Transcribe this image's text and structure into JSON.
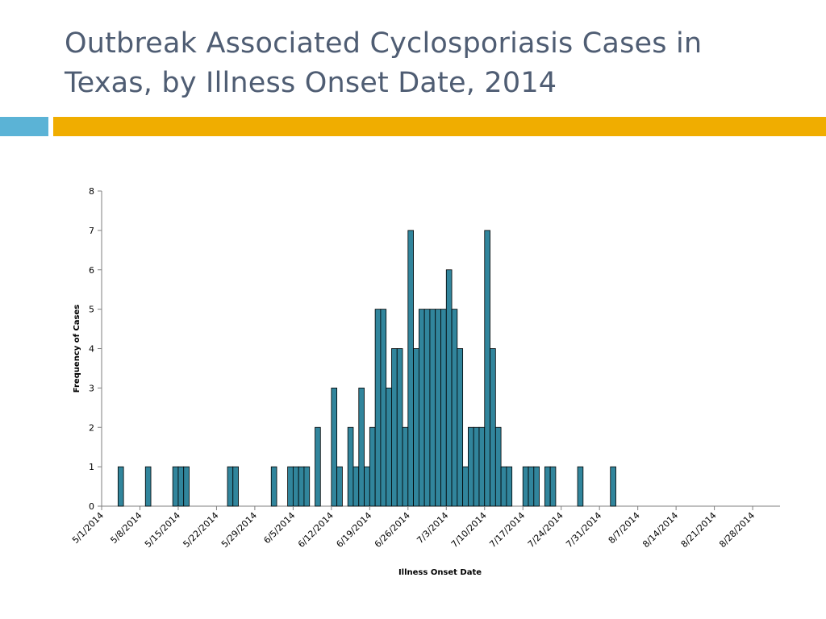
{
  "slide": {
    "title": "Outbreak Associated Cyclosporiasis Cases in Texas, by Illness Onset Date, 2014",
    "colors": {
      "title": "#4f5d73",
      "accent_blue": "#5bb3d6",
      "accent_gold": "#f0ad00"
    }
  },
  "chart_data": {
    "type": "bar",
    "title": "",
    "xlabel": "Illness Onset Date",
    "ylabel": "Frequency of Cases",
    "ylim": [
      0,
      8
    ],
    "yticks": [
      0,
      1,
      2,
      3,
      4,
      5,
      6,
      7,
      8
    ],
    "xtick_labels": [
      "5/1/2014",
      "5/8/2014",
      "5/15/2014",
      "5/22/2014",
      "5/29/2014",
      "6/5/2014",
      "6/12/2014",
      "6/19/2014",
      "6/26/2014",
      "7/3/2014",
      "7/10/2014",
      "7/17/2014",
      "7/24/2014",
      "7/31/2014",
      "8/7/2014",
      "8/14/2014",
      "8/21/2014",
      "8/28/2014"
    ],
    "start_date": "5/1/2014",
    "days_shown": 124,
    "bar_color": "#31859c",
    "series": [
      {
        "name": "Cases",
        "points": [
          {
            "date": "5/4/2014",
            "value": 1
          },
          {
            "date": "5/9/2014",
            "value": 1
          },
          {
            "date": "5/14/2014",
            "value": 1
          },
          {
            "date": "5/15/2014",
            "value": 1
          },
          {
            "date": "5/16/2014",
            "value": 1
          },
          {
            "date": "5/24/2014",
            "value": 1
          },
          {
            "date": "5/25/2014",
            "value": 1
          },
          {
            "date": "6/1/2014",
            "value": 1
          },
          {
            "date": "6/4/2014",
            "value": 1
          },
          {
            "date": "6/5/2014",
            "value": 1
          },
          {
            "date": "6/6/2014",
            "value": 1
          },
          {
            "date": "6/7/2014",
            "value": 1
          },
          {
            "date": "6/9/2014",
            "value": 2
          },
          {
            "date": "6/12/2014",
            "value": 3
          },
          {
            "date": "6/13/2014",
            "value": 1
          },
          {
            "date": "6/15/2014",
            "value": 2
          },
          {
            "date": "6/16/2014",
            "value": 1
          },
          {
            "date": "6/17/2014",
            "value": 3
          },
          {
            "date": "6/18/2014",
            "value": 1
          },
          {
            "date": "6/19/2014",
            "value": 2
          },
          {
            "date": "6/20/2014",
            "value": 5
          },
          {
            "date": "6/21/2014",
            "value": 5
          },
          {
            "date": "6/22/2014",
            "value": 3
          },
          {
            "date": "6/23/2014",
            "value": 4
          },
          {
            "date": "6/24/2014",
            "value": 4
          },
          {
            "date": "6/25/2014",
            "value": 2
          },
          {
            "date": "6/26/2014",
            "value": 7
          },
          {
            "date": "6/27/2014",
            "value": 4
          },
          {
            "date": "6/28/2014",
            "value": 5
          },
          {
            "date": "6/29/2014",
            "value": 5
          },
          {
            "date": "6/30/2014",
            "value": 5
          },
          {
            "date": "7/1/2014",
            "value": 5
          },
          {
            "date": "7/2/2014",
            "value": 5
          },
          {
            "date": "7/3/2014",
            "value": 6
          },
          {
            "date": "7/4/2014",
            "value": 5
          },
          {
            "date": "7/5/2014",
            "value": 4
          },
          {
            "date": "7/6/2014",
            "value": 1
          },
          {
            "date": "7/7/2014",
            "value": 2
          },
          {
            "date": "7/8/2014",
            "value": 2
          },
          {
            "date": "7/9/2014",
            "value": 2
          },
          {
            "date": "7/10/2014",
            "value": 7
          },
          {
            "date": "7/11/2014",
            "value": 4
          },
          {
            "date": "7/12/2014",
            "value": 2
          },
          {
            "date": "7/13/2014",
            "value": 1
          },
          {
            "date": "7/14/2014",
            "value": 1
          },
          {
            "date": "7/17/2014",
            "value": 1
          },
          {
            "date": "7/18/2014",
            "value": 1
          },
          {
            "date": "7/19/2014",
            "value": 1
          },
          {
            "date": "7/21/2014",
            "value": 1
          },
          {
            "date": "7/22/2014",
            "value": 1
          },
          {
            "date": "7/27/2014",
            "value": 1
          },
          {
            "date": "8/2/2014",
            "value": 1
          }
        ]
      }
    ]
  }
}
